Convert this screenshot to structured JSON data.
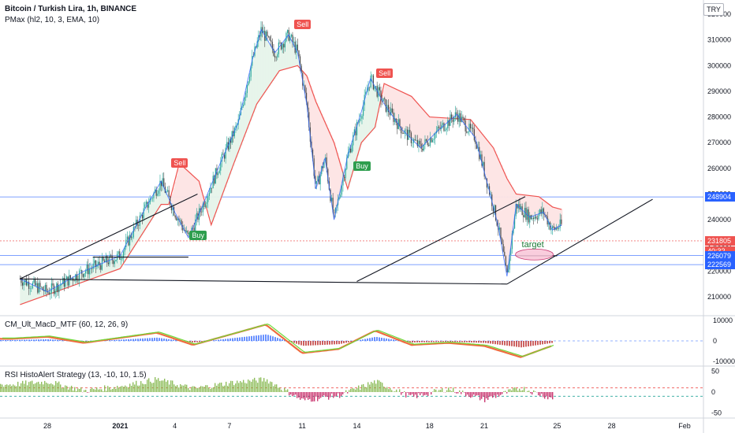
{
  "header": {
    "title": "Bitcoin / Turkish Lira, 1h, BINANCE",
    "indicator": "PMax (hl2, 10, 3, EMA, 10)"
  },
  "currency_badge": "TRY",
  "panes": {
    "macd_label": "CM_Ult_MacD_MTF (60, 12, 26, 9)",
    "rsi_label": "RSI HistoAlert Strategy (13, -10, 10, 1.5)"
  },
  "price_tags": [
    {
      "text": "248904",
      "color": "#2962ff"
    },
    {
      "text": "231805",
      "color": "#ef5350"
    },
    {
      "text": "40:32",
      "color": "#ef5350"
    },
    {
      "text": "226079",
      "color": "#2962ff"
    },
    {
      "text": "222569",
      "color": "#2962ff"
    }
  ],
  "signals": [
    {
      "type": "sell",
      "text": "Sell"
    },
    {
      "type": "sell",
      "text": "Sell"
    },
    {
      "type": "sell",
      "text": "Sell"
    },
    {
      "type": "buy",
      "text": "Buy"
    },
    {
      "type": "buy",
      "text": "Buy"
    }
  ],
  "annotation": {
    "text": "target"
  },
  "chart_data": {
    "type": "line",
    "symbol": "BTCTRY",
    "timeframe": "1h",
    "y_axis": {
      "ticks": [
        210000,
        220000,
        230000,
        240000,
        250000,
        260000,
        270000,
        280000,
        290000,
        300000,
        310000,
        320000
      ]
    },
    "x_axis": {
      "ticks": [
        "28",
        "2021",
        "4",
        "7",
        "11",
        "14",
        "18",
        "21",
        "25",
        "28",
        "Feb"
      ]
    },
    "price_path": [
      {
        "t": "2020-12-26 12:00",
        "v": 217000
      },
      {
        "t": "2020-12-28 00:00",
        "v": 212000
      },
      {
        "t": "2020-12-30 00:00",
        "v": 220000
      },
      {
        "t": "2021-01-01 00:00",
        "v": 226000
      },
      {
        "t": "2021-01-02 12:00",
        "v": 246000
      },
      {
        "t": "2021-01-03 06:00",
        "v": 255000
      },
      {
        "t": "2021-01-04 00:00",
        "v": 243000
      },
      {
        "t": "2021-01-04 18:00",
        "v": 233000
      },
      {
        "t": "2021-01-05 12:00",
        "v": 245000
      },
      {
        "t": "2021-01-06 12:00",
        "v": 262000
      },
      {
        "t": "2021-01-07 12:00",
        "v": 278000
      },
      {
        "t": "2021-01-08 06:00",
        "v": 302000
      },
      {
        "t": "2021-01-08 18:00",
        "v": 314000
      },
      {
        "t": "2021-01-09 12:00",
        "v": 305000
      },
      {
        "t": "2021-01-10 06:00",
        "v": 312000
      },
      {
        "t": "2021-01-10 18:00",
        "v": 305000
      },
      {
        "t": "2021-01-11 06:00",
        "v": 285000
      },
      {
        "t": "2021-01-11 18:00",
        "v": 252000
      },
      {
        "t": "2021-01-12 06:00",
        "v": 264000
      },
      {
        "t": "2021-01-12 18:00",
        "v": 240000
      },
      {
        "t": "2021-01-13 12:00",
        "v": 265000
      },
      {
        "t": "2021-01-14 06:00",
        "v": 282000
      },
      {
        "t": "2021-01-14 18:00",
        "v": 295000
      },
      {
        "t": "2021-01-15 12:00",
        "v": 285000
      },
      {
        "t": "2021-01-16 12:00",
        "v": 275000
      },
      {
        "t": "2021-01-17 12:00",
        "v": 268000
      },
      {
        "t": "2021-01-18 12:00",
        "v": 275000
      },
      {
        "t": "2021-01-19 12:00",
        "v": 281000
      },
      {
        "t": "2021-01-20 12:00",
        "v": 272000
      },
      {
        "t": "2021-01-21 06:00",
        "v": 252000
      },
      {
        "t": "2021-01-21 18:00",
        "v": 238000
      },
      {
        "t": "2021-01-22 06:00",
        "v": 218000
      },
      {
        "t": "2021-01-22 18:00",
        "v": 246000
      },
      {
        "t": "2021-01-23 12:00",
        "v": 241000
      },
      {
        "t": "2021-01-24 06:00",
        "v": 243000
      },
      {
        "t": "2021-01-24 18:00",
        "v": 236000
      },
      {
        "t": "2021-01-25 06:00",
        "v": 238000
      }
    ],
    "pmax_stop": [
      {
        "t": "2020-12-26 12:00",
        "v": 207000
      },
      {
        "t": "2021-01-01 00:00",
        "v": 221000
      },
      {
        "t": "2021-01-03 06:00",
        "v": 246000
      },
      {
        "t": "2021-01-03 16:00",
        "v": 246000
      },
      {
        "t": "2021-01-04 06:00",
        "v": 262000
      },
      {
        "t": "2021-01-05 08:00",
        "v": 255000
      },
      {
        "t": "2021-01-06 00:00",
        "v": 238000
      },
      {
        "t": "2021-01-07 06:00",
        "v": 262000
      },
      {
        "t": "2021-01-08 12:00",
        "v": 285000
      },
      {
        "t": "2021-01-09 18:00",
        "v": 298000
      },
      {
        "t": "2021-01-10 18:00",
        "v": 300000
      },
      {
        "t": "2021-01-11 06:00",
        "v": 296000
      },
      {
        "t": "2021-01-11 18:00",
        "v": 286000
      },
      {
        "t": "2021-01-12 18:00",
        "v": 270000
      },
      {
        "t": "2021-01-13 12:00",
        "v": 252000
      },
      {
        "t": "2021-01-14 06:00",
        "v": 270000
      },
      {
        "t": "2021-01-15 00:00",
        "v": 276000
      },
      {
        "t": "2021-01-15 12:00",
        "v": 293000
      },
      {
        "t": "2021-01-17 00:00",
        "v": 288000
      },
      {
        "t": "2021-01-18 00:00",
        "v": 280000
      },
      {
        "t": "2021-01-20 06:00",
        "v": 279000
      },
      {
        "t": "2021-01-21 12:00",
        "v": 268000
      },
      {
        "t": "2021-01-22 06:00",
        "v": 256000
      },
      {
        "t": "2021-01-22 18:00",
        "v": 250000
      },
      {
        "t": "2021-01-24 00:00",
        "v": 249000
      },
      {
        "t": "2021-01-24 18:00",
        "v": 245000
      },
      {
        "t": "2021-01-25 06:00",
        "v": 244000
      }
    ],
    "horizontal_levels": [
      248904,
      231805,
      226079,
      222569
    ],
    "trendlines": [
      {
        "from": {
          "t": "2020-12-26 12:00",
          "v": 217000
        },
        "to": {
          "t": "2021-01-05 06:00",
          "v": 250000
        }
      },
      {
        "from": {
          "t": "2020-12-26 12:00",
          "v": 217000
        },
        "to": {
          "t": "2021-01-22 06:00",
          "v": 215000
        }
      },
      {
        "from": {
          "t": "2021-01-14 00:00",
          "v": 216000
        },
        "to": {
          "t": "2021-01-23 06:00",
          "v": 249000
        }
      },
      {
        "from": {
          "t": "2021-01-22 06:00",
          "v": 215000
        },
        "to": {
          "t": "2021-01-30 06:00",
          "v": 248000
        }
      },
      {
        "from": {
          "t": "2020-12-30 12:00",
          "v": 225500
        },
        "to": {
          "t": "2021-01-04 18:00",
          "v": 225500
        }
      },
      {
        "from": {
          "t": "2021-01-22 18:00",
          "v": 226000
        },
        "to": {
          "t": "2021-01-25 00:00",
          "v": 226000
        }
      }
    ],
    "signals": [
      {
        "type": "sell",
        "t": "2021-01-04 06:00",
        "v": 262000
      },
      {
        "type": "sell",
        "t": "2021-01-11 00:00",
        "v": 316000
      },
      {
        "type": "sell",
        "t": "2021-01-15 12:00",
        "v": 297000
      },
      {
        "type": "buy",
        "t": "2021-01-05 06:00",
        "v": 234000
      },
      {
        "type": "buy",
        "t": "2021-01-14 06:00",
        "v": 261000
      }
    ],
    "target_zone": {
      "t": "2021-01-23 18:00",
      "v": 226500
    },
    "macd": {
      "ticks": [
        10000,
        0,
        -10000
      ],
      "x": [
        "2020-12-26",
        "2020-12-28",
        "2020-12-30",
        "2021-01-01",
        "2021-01-03",
        "2021-01-05",
        "2021-01-07",
        "2021-01-09",
        "2021-01-11",
        "2021-01-13",
        "2021-01-15",
        "2021-01-17",
        "2021-01-19",
        "2021-01-21",
        "2021-01-23",
        "2021-01-25"
      ],
      "values": [
        1000,
        2000,
        -1000,
        1500,
        4000,
        -2000,
        3000,
        8000,
        -6000,
        -4000,
        5000,
        -2000,
        -1000,
        -2500,
        -8000,
        -1500
      ]
    },
    "rsi": {
      "ticks": [
        50,
        0,
        -50
      ],
      "levels": [
        10,
        -10
      ],
      "x": [
        "2020-12-26",
        "2020-12-28",
        "2020-12-30",
        "2021-01-01",
        "2021-01-03",
        "2021-01-05",
        "2021-01-07",
        "2021-01-09",
        "2021-01-11",
        "2021-01-13",
        "2021-01-15",
        "2021-01-17",
        "2021-01-19",
        "2021-01-21",
        "2021-01-23",
        "2021-01-25"
      ],
      "values": [
        18,
        25,
        3,
        14,
        30,
        8,
        22,
        30,
        -20,
        -8,
        25,
        -12,
        8,
        -18,
        10,
        -20
      ]
    }
  }
}
